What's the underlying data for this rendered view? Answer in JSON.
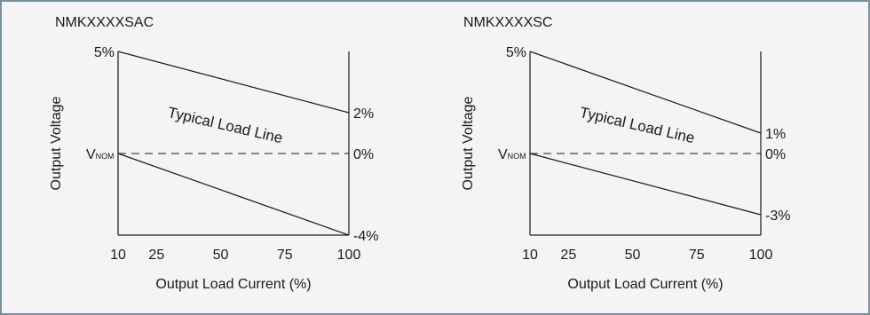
{
  "chart_data": [
    {
      "type": "line",
      "title": "NMKXXXXSAC",
      "xlabel": "Output Load Current (%)",
      "ylabel": "Output Voltage",
      "x_ticks": [
        "10",
        "25",
        "50",
        "75",
        "100"
      ],
      "xlim": [
        10,
        100
      ],
      "ylim": [
        -4,
        5
      ],
      "y_left_labels": {
        "top": "5%",
        "nominal_main": "V",
        "nominal_sub": "NOM"
      },
      "y_right_ticks": [
        {
          "label": "2%",
          "value": 2
        },
        {
          "label": "0%",
          "value": 0
        },
        {
          "label": "-4%",
          "value": -4
        }
      ],
      "series": [
        {
          "x": [
            10,
            100
          ],
          "y": [
            5,
            2
          ]
        },
        {
          "x": [
            10,
            100
          ],
          "y": [
            0,
            -4
          ]
        }
      ],
      "reference_line": {
        "y": 0,
        "style": "dashed"
      },
      "annotation": "Typical Load Line"
    },
    {
      "type": "line",
      "title": "NMKXXXXSC",
      "xlabel": "Output Load Current (%)",
      "ylabel": "Output Voltage",
      "x_ticks": [
        "10",
        "25",
        "50",
        "75",
        "100"
      ],
      "xlim": [
        10,
        100
      ],
      "ylim": [
        -4,
        5
      ],
      "y_left_labels": {
        "top": "5%",
        "nominal_main": "V",
        "nominal_sub": "NOM"
      },
      "y_right_ticks": [
        {
          "label": "1%",
          "value": 1
        },
        {
          "label": "0%",
          "value": 0
        },
        {
          "label": "-3%",
          "value": -3
        }
      ],
      "series": [
        {
          "x": [
            10,
            100
          ],
          "y": [
            5,
            1
          ]
        },
        {
          "x": [
            10,
            100
          ],
          "y": [
            0,
            -3
          ]
        }
      ],
      "reference_line": {
        "y": 0,
        "style": "dashed"
      },
      "annotation": "Typical Load Line"
    }
  ]
}
